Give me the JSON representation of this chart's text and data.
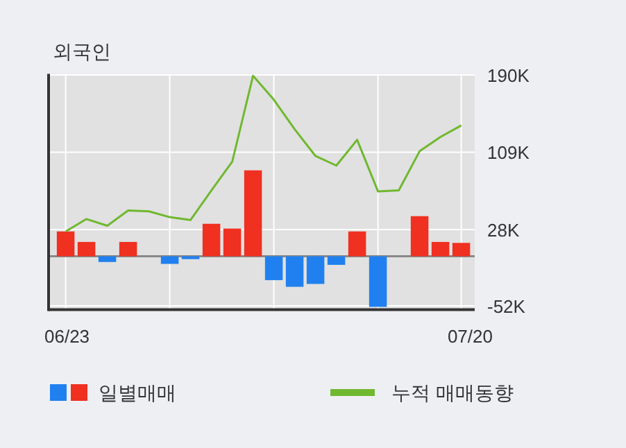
{
  "chart_data": {
    "type": "bar",
    "title": "외국인",
    "categories": [
      "06/23",
      null,
      null,
      null,
      null,
      null,
      null,
      null,
      null,
      null,
      null,
      null,
      null,
      null,
      null,
      null,
      null,
      null,
      null,
      "07/20"
    ],
    "series": [
      {
        "name": "일별매매",
        "colors": [
          "#f03020",
          "#f03020",
          "#2080f0",
          "#f03020",
          "#f03020",
          "#2080f0",
          "#2080f0",
          "#f03020",
          "#f03020",
          "#f03020",
          "#2080f0",
          "#2080f0",
          "#2080f0",
          "#2080f0",
          "#f03020",
          "#2080f0",
          "#f03020",
          "#f03020",
          "#f03020",
          "#f03020"
        ],
        "values": [
          26,
          15,
          -6,
          15,
          0,
          -8,
          -3,
          34,
          29,
          90,
          -25,
          -32,
          -29,
          -9,
          26,
          -53,
          0,
          42,
          15,
          14
        ]
      },
      {
        "name": "누적 매매동향",
        "type": "line",
        "color": "#70b830",
        "values": [
          26,
          39,
          32,
          48,
          47,
          41,
          38,
          69,
          99,
          189,
          164,
          133,
          105,
          95,
          122,
          68,
          69,
          110,
          125,
          137
        ]
      }
    ],
    "ylim": [
      -56,
      191
    ],
    "yticks": [
      {
        "value": 190,
        "label": "190K"
      },
      {
        "value": 109,
        "label": "109K"
      },
      {
        "value": 28,
        "label": "28K"
      },
      {
        "value": -52,
        "label": "-52K"
      }
    ],
    "ref_lines": [
      {
        "axis": "y",
        "value": 0,
        "color": "#888888"
      }
    ],
    "grid": true,
    "legend": "bottom"
  }
}
